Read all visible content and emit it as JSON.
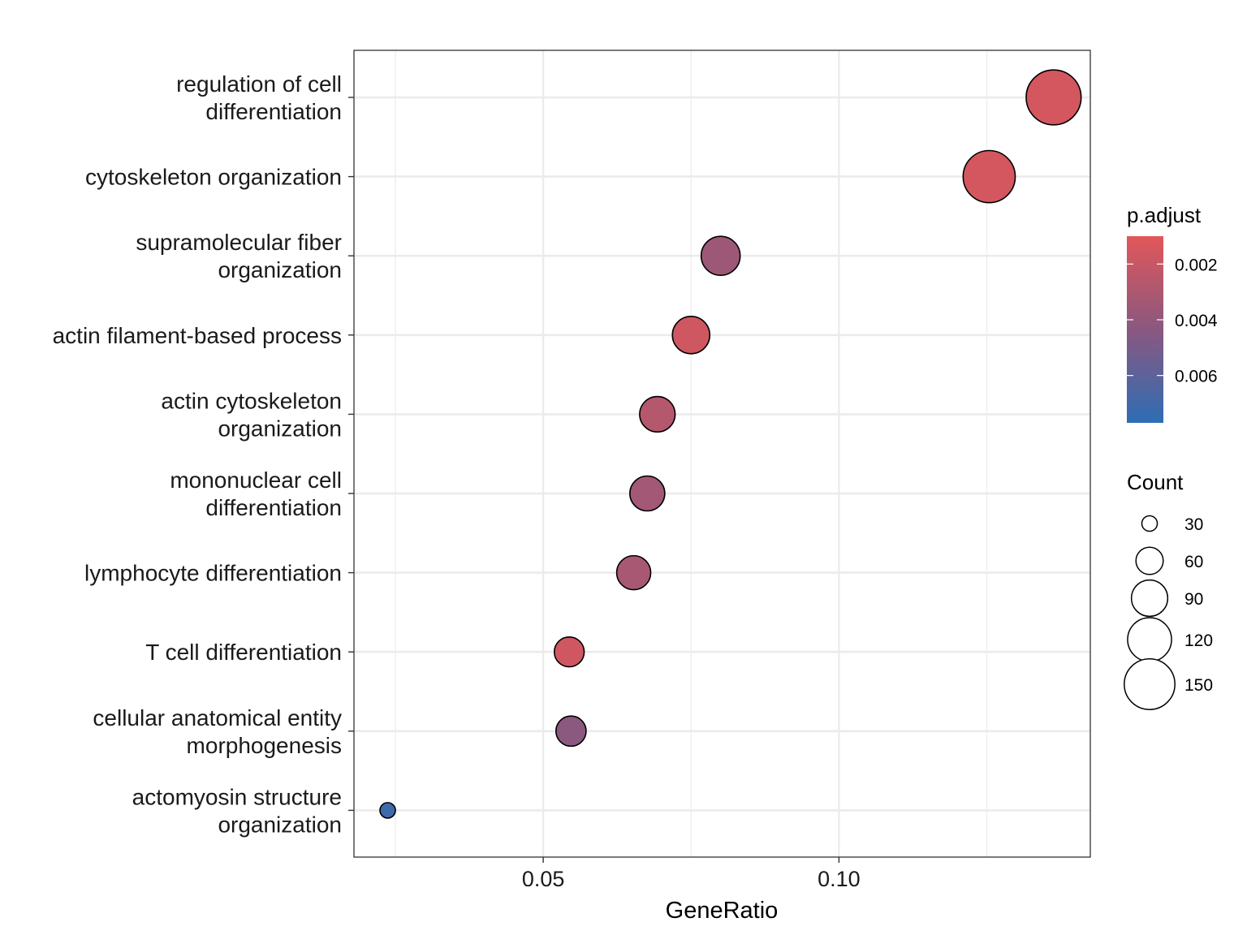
{
  "chart_data": {
    "type": "scatter",
    "title": "",
    "xlabel": "GeneRatio",
    "ylabel": "",
    "xlim": [
      0.018,
      0.1425
    ],
    "x_ticks": [
      {
        "value": 0.05,
        "label": "0.05"
      },
      {
        "value": 0.1,
        "label": "0.10"
      }
    ],
    "x_minor_grid": [
      0.025,
      0.075,
      0.125
    ],
    "grid": true,
    "categories": [
      {
        "label_lines": [
          "regulation of cell",
          "differentiation"
        ]
      },
      {
        "label_lines": [
          "cytoskeleton organization"
        ]
      },
      {
        "label_lines": [
          "supramolecular fiber",
          "organization"
        ]
      },
      {
        "label_lines": [
          "actin filament-based process"
        ]
      },
      {
        "label_lines": [
          "actin cytoskeleton",
          "organization"
        ]
      },
      {
        "label_lines": [
          "mononuclear cell",
          "differentiation"
        ]
      },
      {
        "label_lines": [
          "lymphocyte differentiation"
        ]
      },
      {
        "label_lines": [
          "T cell differentiation"
        ]
      },
      {
        "label_lines": [
          "cellular anatomical entity",
          "morphogenesis"
        ]
      },
      {
        "label_lines": [
          "actomyosin structure",
          "organization"
        ]
      }
    ],
    "points": [
      {
        "x": 0.1363,
        "count": 171,
        "p_adjust": 0.0015
      },
      {
        "x": 0.1254,
        "count": 157,
        "p_adjust": 0.0015
      },
      {
        "x": 0.08,
        "count": 100,
        "p_adjust": 0.0036
      },
      {
        "x": 0.075,
        "count": 94,
        "p_adjust": 0.0017
      },
      {
        "x": 0.0693,
        "count": 87,
        "p_adjust": 0.0027
      },
      {
        "x": 0.0676,
        "count": 85,
        "p_adjust": 0.0034
      },
      {
        "x": 0.0653,
        "count": 82,
        "p_adjust": 0.0032
      },
      {
        "x": 0.0544,
        "count": 68,
        "p_adjust": 0.0017
      },
      {
        "x": 0.0547,
        "count": 69,
        "p_adjust": 0.0043
      },
      {
        "x": 0.0237,
        "count": 30,
        "p_adjust": 0.0071
      }
    ],
    "legend": {
      "placement": "right",
      "color": {
        "title": "p.adjust",
        "range": [
          0.001,
          0.0077
        ],
        "low_color": "#E15759",
        "high_color": "#2E6DB4",
        "ticks": [
          {
            "value": 0.002,
            "label": "0.002"
          },
          {
            "value": 0.004,
            "label": "0.004"
          },
          {
            "value": 0.006,
            "label": "0.006"
          }
        ]
      },
      "size": {
        "title": "Count",
        "entries": [
          {
            "value": 30,
            "label": "30"
          },
          {
            "value": 60,
            "label": "60"
          },
          {
            "value": 90,
            "label": "90"
          },
          {
            "value": 120,
            "label": "120"
          },
          {
            "value": 150,
            "label": "150"
          }
        ]
      }
    }
  }
}
